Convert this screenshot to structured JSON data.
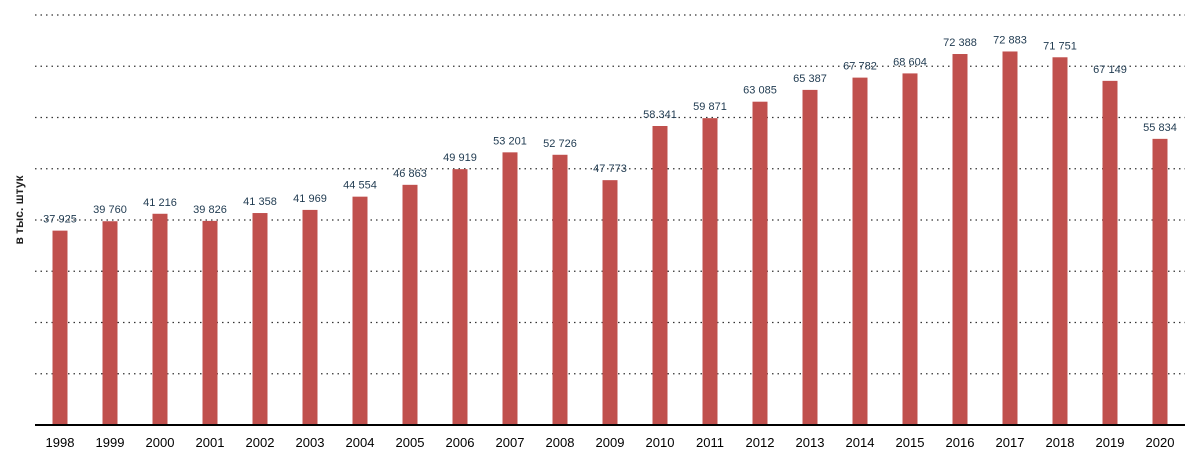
{
  "chart_data": {
    "type": "bar",
    "title": "",
    "xlabel": "",
    "ylabel": "в тыс. штук",
    "categories": [
      "1998",
      "1999",
      "2000",
      "2001",
      "2002",
      "2003",
      "2004",
      "2005",
      "2006",
      "2007",
      "2008",
      "2009",
      "2010",
      "2011",
      "2012",
      "2013",
      "2014",
      "2015",
      "2016",
      "2017",
      "2018",
      "2019",
      "2020"
    ],
    "values": [
      37925,
      39760,
      41216,
      39826,
      41358,
      41969,
      44554,
      46863,
      49919,
      53201,
      52726,
      47773,
      58341,
      59871,
      63085,
      65387,
      67782,
      68604,
      72388,
      72883,
      71751,
      67149,
      55834
    ],
    "value_labels": [
      "37 925",
      "39 760",
      "41 216",
      "39 826",
      "41 358",
      "41 969",
      "44 554",
      "46 863",
      "49 919",
      "53 201",
      "52 726",
      "47 773",
      "58 341",
      "59 871",
      "63 085",
      "65 387",
      "67 782",
      "68 604",
      "72 388",
      "72 883",
      "71 751",
      "67 149",
      "55 834"
    ],
    "ylim": [
      0,
      80000
    ],
    "grid": true,
    "colors": {
      "bar": "#C0504D",
      "label": "#1F3A50",
      "grid": "#333333",
      "axis": "#000000"
    }
  }
}
